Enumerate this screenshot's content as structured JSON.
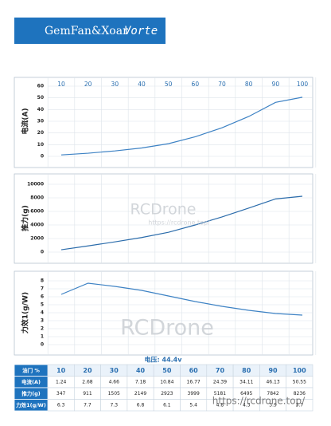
{
  "header": {
    "brand": "GemFan&Xoar",
    "model": "Vorte"
  },
  "chart_data": [
    {
      "type": "line",
      "ylabel": "电流(A)",
      "categories": [
        "10",
        "20",
        "30",
        "40",
        "50",
        "60",
        "70",
        "80",
        "90",
        "100"
      ],
      "values": [
        1.24,
        2.68,
        4.66,
        7.18,
        10.84,
        16.77,
        24.39,
        34.11,
        46.13,
        50.55
      ],
      "color": "#3d82c4",
      "ylim": [
        0,
        60
      ],
      "yticks": [
        0,
        10,
        20,
        30,
        40,
        50,
        60
      ],
      "grid": true
    },
    {
      "type": "line",
      "ylabel": "推力(g)",
      "values": [
        347,
        911,
        1505,
        2149,
        2923,
        3999,
        5181,
        6495,
        7842,
        8236
      ],
      "color": "#2b6cab",
      "ylim": [
        0,
        10000
      ],
      "yticks": [
        0,
        2000,
        4000,
        6000,
        8000,
        10000
      ],
      "grid": true
    },
    {
      "type": "line",
      "ylabel": "力效1(g/W)",
      "xlabel": "电压: 44.4v",
      "values": [
        6.3,
        7.7,
        7.3,
        6.8,
        6.1,
        5.4,
        4.8,
        4.3,
        3.9,
        3.7
      ],
      "color": "#3d82c4",
      "ylim": [
        0,
        8
      ],
      "yticks": [
        0,
        1,
        2,
        3,
        4,
        5,
        6,
        7,
        8
      ],
      "grid": true
    }
  ],
  "table": {
    "row_labels": [
      "油门 %",
      "电流(A)",
      "推力(g)",
      "力效1(g/W)"
    ]
  },
  "watermarks": [
    "RCDrone",
    "https://rcdrone.top/",
    "RCDrone",
    "https://rcdrone.top/"
  ]
}
